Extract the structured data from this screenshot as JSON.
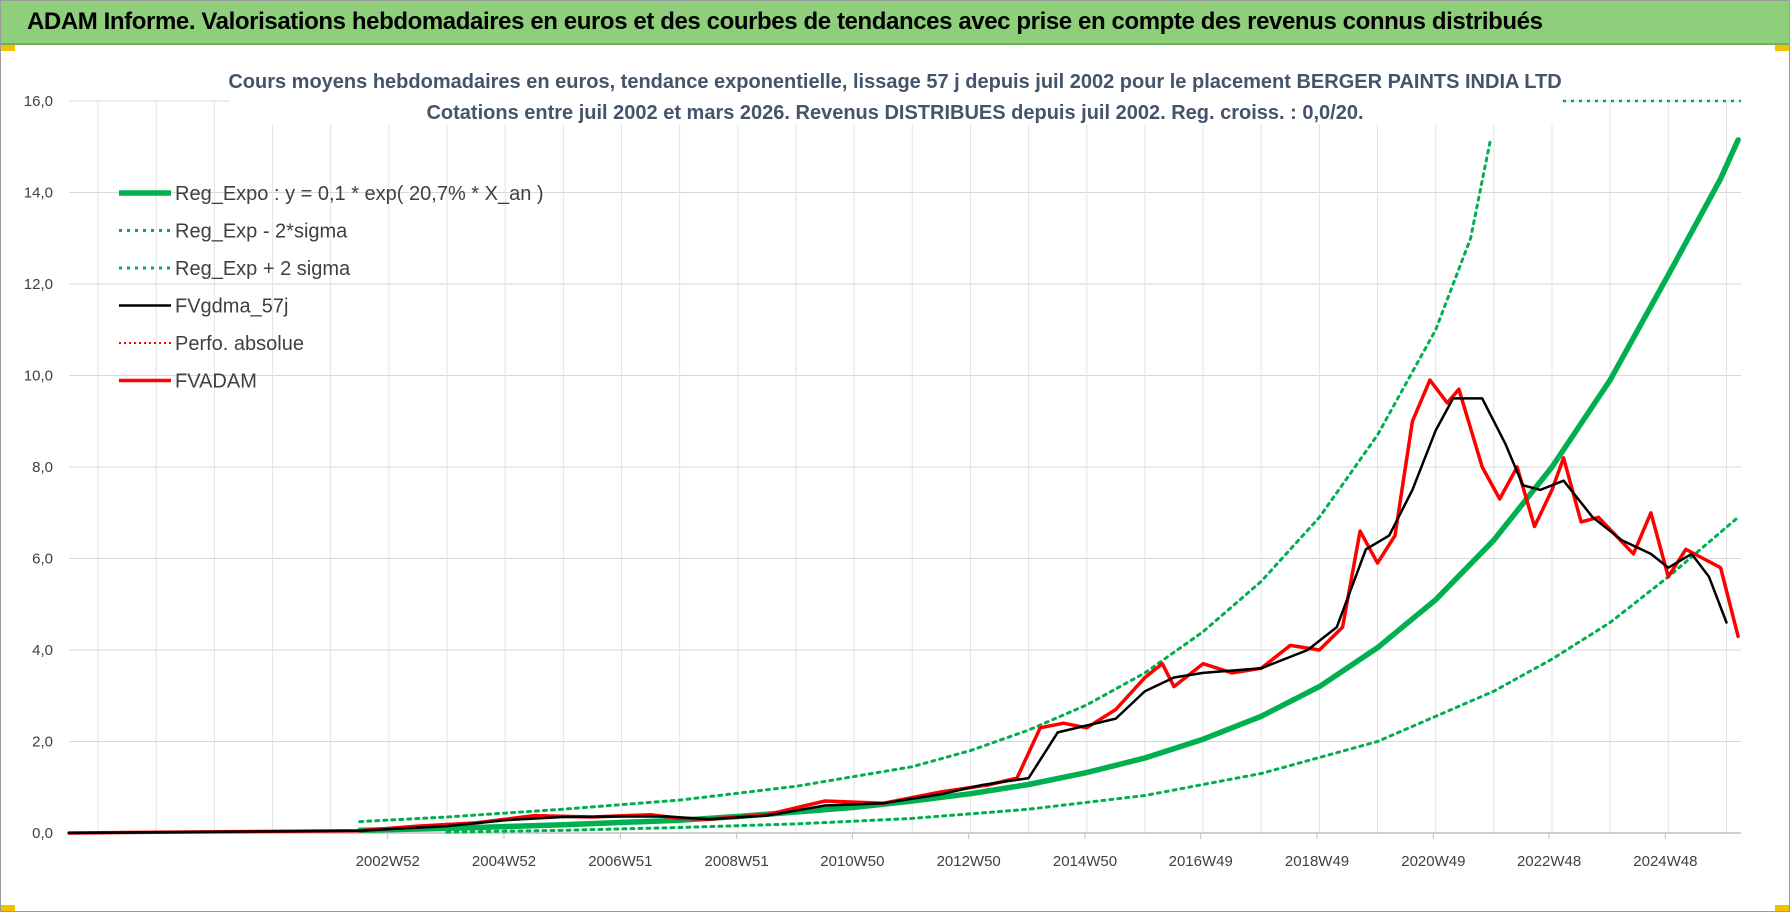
{
  "header": {
    "title": "ADAM Informe. Valorisations hebdomadaires en euros et des courbes de tendances avec prise en compte des revenus connus distribués"
  },
  "chart_data": {
    "type": "line",
    "title_line1": "Cours moyens hebdomadaires en euros, tendance exponentielle, lissage 57 j depuis juil 2002 pour le placement BERGER PAINTS INDIA LTD",
    "title_line2": "Cotations entre juil 2002 et mars 2026. Revenus DISTRIBUES depuis juil 2002. Reg. croiss. : 0,0/20.",
    "ylim": [
      0,
      16
    ],
    "y_ticks": [
      "0,0",
      "2,0",
      "4,0",
      "6,0",
      "8,0",
      "10,0",
      "12,0",
      "14,0",
      "16,0"
    ],
    "x_ticks": [
      "2002W52",
      "2004W52",
      "2006W51",
      "2008W51",
      "2010W50",
      "2012W50",
      "2014W50",
      "2016W49",
      "2018W49",
      "2020W49",
      "2022W48",
      "2024W48"
    ],
    "x_tick_years": [
      2002.98,
      2004.98,
      2006.98,
      2008.98,
      2010.97,
      2012.97,
      2014.97,
      2016.96,
      2018.96,
      2020.96,
      2022.95,
      2024.95
    ],
    "x_range_years": [
      1997.5,
      2026.25
    ],
    "grid": true,
    "legend_position": "top-left",
    "colors": {
      "reg": "#00b050",
      "reg_band": "#00b050",
      "fvgdma": "#000000",
      "perfo": "#ff0000",
      "fvadam": "#ff0000"
    },
    "series": [
      {
        "key": "reg",
        "name": "Reg_Expo : y = 0,1 * exp( 20,7% *  X_an )",
        "x": [
          2002.5,
          2004,
          2006,
          2008,
          2009,
          2010,
          2011,
          2012,
          2013,
          2014,
          2015,
          2016,
          2017,
          2018,
          2019,
          2020,
          2021,
          2022,
          2023,
          2024,
          2025,
          2025.9,
          2026.2
        ],
        "y": [
          0.06,
          0.1,
          0.18,
          0.28,
          0.36,
          0.46,
          0.56,
          0.7,
          0.86,
          1.06,
          1.32,
          1.64,
          2.05,
          2.55,
          3.2,
          4.05,
          5.1,
          6.4,
          8.0,
          9.9,
          12.2,
          14.3,
          15.15
        ]
      },
      {
        "key": "band_low",
        "name": "Reg_Exp - 2*sigma",
        "x": [
          2004,
          2006,
          2008,
          2010,
          2012,
          2014,
          2016,
          2018,
          2020,
          2022,
          2023,
          2024,
          2025,
          2026.2
        ],
        "y": [
          0.02,
          0.06,
          0.12,
          0.2,
          0.32,
          0.52,
          0.82,
          1.3,
          2.0,
          3.1,
          3.8,
          4.6,
          5.6,
          6.9
        ]
      },
      {
        "key": "band_high",
        "name": "Reg_Exp + 2 sigma",
        "x": [
          2002.5,
          2004,
          2006,
          2008,
          2010,
          2012,
          2013,
          2014,
          2015,
          2016,
          2017,
          2018,
          2019,
          2020,
          2021,
          2021.6,
          2021.95
        ],
        "y": [
          0.25,
          0.35,
          0.52,
          0.72,
          1.02,
          1.45,
          1.8,
          2.25,
          2.8,
          3.5,
          4.4,
          5.5,
          6.9,
          8.7,
          11.0,
          13.0,
          15.2
        ]
      },
      {
        "key": "fvgdma",
        "name": "FVgdma_57j",
        "x": [
          1997.5,
          2002.5,
          2004,
          2005,
          2006,
          2007,
          2007.8,
          2008.5,
          2009.5,
          2010.5,
          2011.5,
          2012.5,
          2013.2,
          2014,
          2014.5,
          2015.5,
          2016,
          2016.5,
          2017,
          2018,
          2018.8,
          2019.3,
          2019.8,
          2020.2,
          2020.6,
          2021,
          2021.3,
          2021.8,
          2022.2,
          2022.5,
          2022.8,
          2023.2,
          2023.7,
          2024.2,
          2024.7,
          2025,
          2025.4,
          2025.7,
          2026
        ],
        "y": [
          0,
          0.05,
          0.15,
          0.28,
          0.35,
          0.36,
          0.36,
          0.3,
          0.38,
          0.6,
          0.65,
          0.85,
          1.05,
          1.2,
          2.2,
          2.5,
          3.1,
          3.4,
          3.5,
          3.6,
          4.0,
          4.5,
          6.2,
          6.5,
          7.5,
          8.8,
          9.5,
          9.5,
          8.5,
          7.6,
          7.5,
          7.7,
          6.9,
          6.4,
          6.1,
          5.8,
          6.1,
          5.6,
          4.6
        ]
      },
      {
        "key": "perfo",
        "name": "Perfo. absolue",
        "x": [],
        "y": []
      },
      {
        "key": "fvadam",
        "name": "FVADAM",
        "x": [
          1997.5,
          2002.5,
          2003.5,
          2004.5,
          2005.5,
          2006.5,
          2007.5,
          2008,
          2008.5,
          2009.5,
          2010.5,
          2011.5,
          2012.5,
          2013.3,
          2013.8,
          2014.2,
          2014.6,
          2015,
          2015.5,
          2016,
          2016.3,
          2016.5,
          2017,
          2017.5,
          2018,
          2018.5,
          2019,
          2019.4,
          2019.7,
          2020,
          2020.3,
          2020.6,
          2020.9,
          2021.2,
          2021.4,
          2021.8,
          2022.1,
          2022.4,
          2022.7,
          2023,
          2023.2,
          2023.5,
          2023.8,
          2024.1,
          2024.4,
          2024.7,
          2025,
          2025.3,
          2025.6,
          2025.9,
          2026.2
        ],
        "y": [
          0,
          0.05,
          0.15,
          0.22,
          0.38,
          0.35,
          0.4,
          0.32,
          0.3,
          0.4,
          0.7,
          0.65,
          0.9,
          1.05,
          1.2,
          2.3,
          2.4,
          2.3,
          2.7,
          3.4,
          3.7,
          3.2,
          3.7,
          3.5,
          3.6,
          4.1,
          4.0,
          4.5,
          6.6,
          5.9,
          6.5,
          9.0,
          9.9,
          9.4,
          9.7,
          8.0,
          7.3,
          8.0,
          6.7,
          7.5,
          8.2,
          6.8,
          6.9,
          6.5,
          6.1,
          7.0,
          5.6,
          6.2,
          6.0,
          5.8,
          4.3
        ]
      }
    ]
  }
}
